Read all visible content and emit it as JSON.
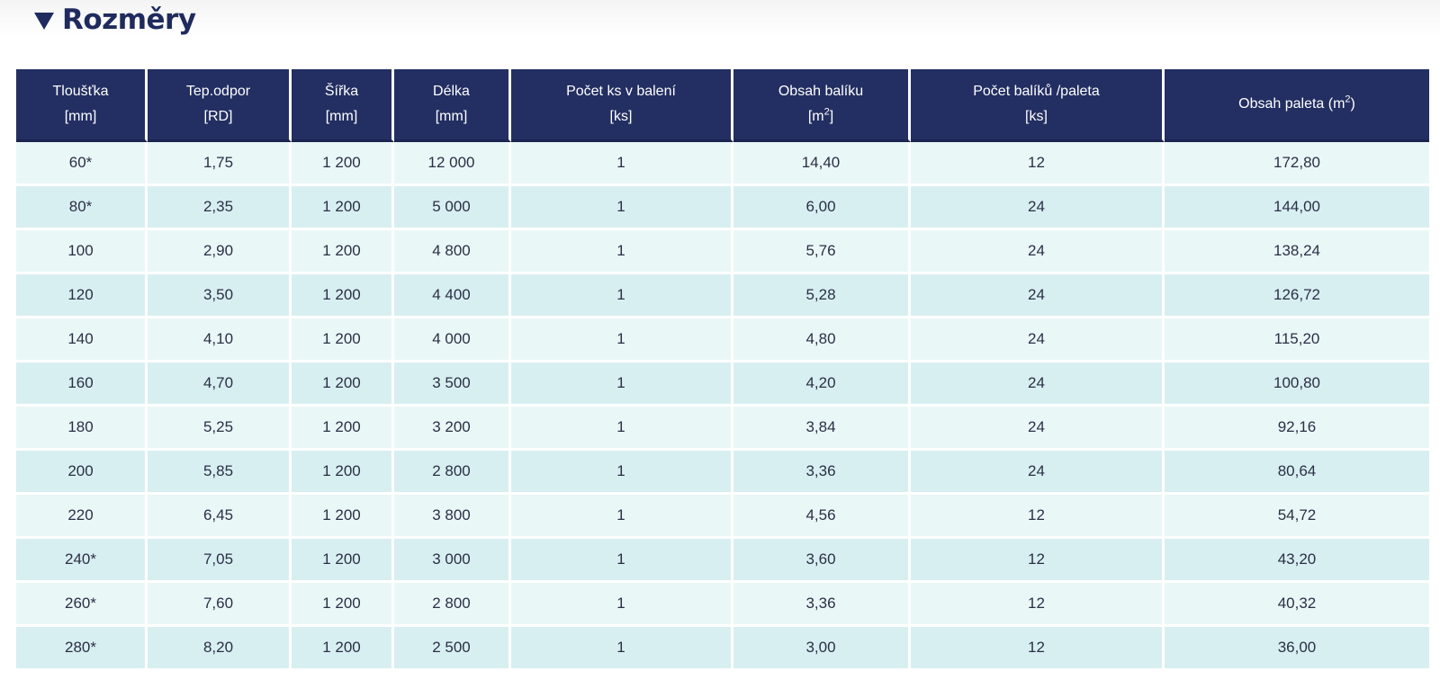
{
  "section": {
    "title": "Rozměry",
    "toggle_icon": "triangle-down-icon"
  },
  "table": {
    "headers": [
      {
        "line1": "Tloušťka",
        "line2": "[mm]"
      },
      {
        "line1": "Tep.odpor",
        "line2": "[RD]"
      },
      {
        "line1": "Šířka",
        "line2": "[mm]"
      },
      {
        "line1": "Délka",
        "line2": "[mm]"
      },
      {
        "line1": "Počet ks v balení",
        "line2": "[ks]"
      },
      {
        "line1": "Obsah balíku",
        "line2_pre": "[m",
        "line2_sup": "2",
        "line2_post": "]"
      },
      {
        "line1": "Počet balíků /paleta",
        "line2": "[ks]"
      },
      {
        "line1_pre": "Obsah paleta (m",
        "line1_sup": "2",
        "line1_post": ")"
      }
    ],
    "rows": [
      [
        "60*",
        "1,75",
        "1 200",
        "12 000",
        "1",
        "14,40",
        "12",
        "172,80"
      ],
      [
        "80*",
        "2,35",
        "1 200",
        "5 000",
        "1",
        "6,00",
        "24",
        "144,00"
      ],
      [
        "100",
        "2,90",
        "1 200",
        "4 800",
        "1",
        "5,76",
        "24",
        "138,24"
      ],
      [
        "120",
        "3,50",
        "1 200",
        "4 400",
        "1",
        "5,28",
        "24",
        "126,72"
      ],
      [
        "140",
        "4,10",
        "1 200",
        "4 000",
        "1",
        "4,80",
        "24",
        "115,20"
      ],
      [
        "160",
        "4,70",
        "1 200",
        "3 500",
        "1",
        "4,20",
        "24",
        "100,80"
      ],
      [
        "180",
        "5,25",
        "1 200",
        "3 200",
        "1",
        "3,84",
        "24",
        "92,16"
      ],
      [
        "200",
        "5,85",
        "1 200",
        "2 800",
        "1",
        "3,36",
        "24",
        "80,64"
      ],
      [
        "220",
        "6,45",
        "1 200",
        "3 800",
        "1",
        "4,56",
        "12",
        "54,72"
      ],
      [
        "240*",
        "7,05",
        "1 200",
        "3 000",
        "1",
        "3,60",
        "12",
        "43,20"
      ],
      [
        "260*",
        "7,60",
        "1 200",
        "2 800",
        "1",
        "3,36",
        "12",
        "40,32"
      ],
      [
        "280*",
        "8,20",
        "1 200",
        "2 500",
        "1",
        "3,00",
        "12",
        "36,00"
      ]
    ]
  },
  "colors": {
    "header_bg": "#232f62",
    "row_light": "#eaf7f7",
    "row_dark": "#d8eff1",
    "title": "#1f2b5e"
  }
}
